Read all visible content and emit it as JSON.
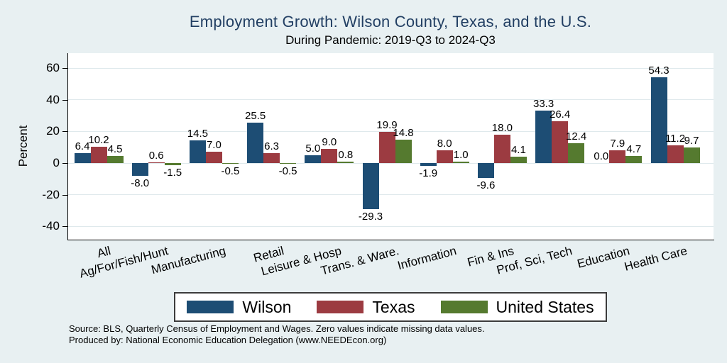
{
  "chart_data": {
    "type": "bar",
    "title": "Employment Growth: Wilson County, Texas, and the U.S.",
    "subtitle": "During Pandemic: 2019-Q3 to 2024-Q3",
    "ylabel": "Percent",
    "ylim": [
      -50,
      70
    ],
    "yticks": [
      60,
      40,
      20,
      0,
      -20,
      -40
    ],
    "grid": true,
    "legend_position": "bottom",
    "value_label_format": "one-decimal",
    "categories": [
      "All",
      "Ag/For/Fish/Hunt",
      "Manufacturing",
      "Retail",
      "Leisure & Hosp",
      "Trans. & Ware.",
      "Information",
      "Fin & Ins",
      "Prof, Sci, Tech",
      "Education",
      "Health Care"
    ],
    "series": [
      {
        "name": "Wilson",
        "color": "#1d4d74",
        "values": [
          6.4,
          -8.0,
          14.5,
          25.5,
          5.0,
          -29.3,
          -1.9,
          -9.6,
          33.3,
          0.0,
          54.3
        ]
      },
      {
        "name": "Texas",
        "color": "#9c3b41",
        "values": [
          10.2,
          0.6,
          7.0,
          6.3,
          9.0,
          19.9,
          8.0,
          18.0,
          26.4,
          7.9,
          11.2
        ]
      },
      {
        "name": "United States",
        "color": "#557a2f",
        "values": [
          4.5,
          -1.5,
          -0.5,
          -0.5,
          0.8,
          14.8,
          1.0,
          4.1,
          12.4,
          4.7,
          9.7
        ]
      }
    ]
  },
  "colors": {
    "background": "#e8f0f2",
    "plot_background": "#ffffff",
    "gridline": "#dfe9ec",
    "title_text": "#223f63",
    "axis": "#000000"
  },
  "footer": {
    "line1": "Source: BLS, Quarterly Census of Employment and Wages. Zero values indicate missing data values.",
    "line2": "Produced by: National Economic Education Delegation (www.NEEDEcon.org)"
  }
}
